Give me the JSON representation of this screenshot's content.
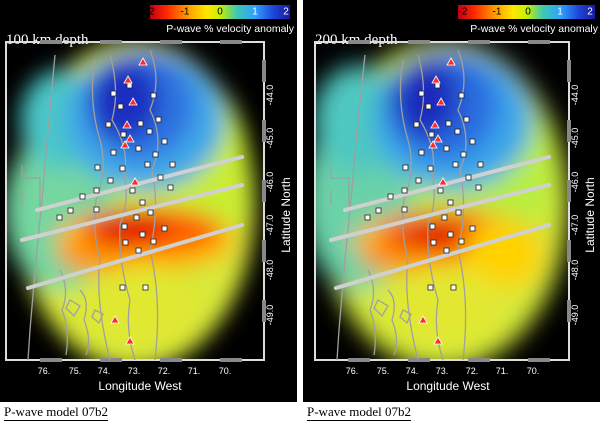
{
  "colorbar": {
    "ticks": [
      "-2",
      "-1",
      "0",
      "1",
      "2"
    ],
    "label": "P-wave % velocity anomaly",
    "colors": [
      "#c00018",
      "#ff2a00",
      "#ff9a00",
      "#ffe600",
      "#c8f000",
      "#3fc8b0",
      "#2fa0ff",
      "#1e46d8",
      "#1a1aa0"
    ]
  },
  "panels": [
    {
      "depth_title": "100 km depth",
      "x_axis_title": "Longitude West",
      "y_axis_title": "Latitude North",
      "x_ticks": [
        "76.",
        "75.",
        "74.",
        "73.",
        "72.",
        "71.",
        "70."
      ],
      "y_ticks": [
        "-44.0",
        "-45.0",
        "-46.0",
        "-47.0",
        "-48.0",
        "-49.0"
      ],
      "model_label": "P-wave model 07b2"
    },
    {
      "depth_title": "200 km depth",
      "x_axis_title": "Longitude West",
      "y_axis_title": "Latitude North",
      "x_ticks": [
        "76.",
        "75.",
        "74.",
        "73.",
        "72.",
        "71.",
        "70."
      ],
      "y_ticks": [
        "-44.0",
        "-45.0",
        "-46.0",
        "-47.0",
        "-48.0",
        "-49.0"
      ],
      "model_label": "P-wave model 07b2"
    }
  ]
}
